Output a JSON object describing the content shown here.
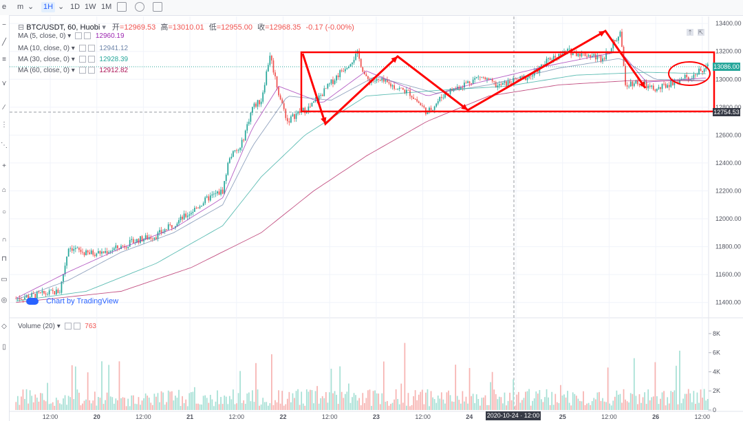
{
  "toolbar": {
    "symbol_search": "e",
    "chart_style": "m",
    "interval_active": "1H",
    "interval_1d": "1D",
    "interval_1w": "1W",
    "interval_1m": "1M"
  },
  "legend": {
    "symbol": "BTC/USDT, 60, Huobi",
    "open_label": "开",
    "open_value": "12969.53",
    "high_label": "高",
    "high_value": "13010.01",
    "low_label": "低",
    "low_value": "12955.00",
    "close_label": "收",
    "close_value": "12968.35",
    "change": "-0.17 (-0.00%)"
  },
  "indicators": [
    {
      "label": "MA (5, close, 0)",
      "value": "12960.19",
      "color": "#9c27b0"
    },
    {
      "label": "MA (10, close, 0)",
      "value": "12941.12",
      "color": "#6b83a8"
    },
    {
      "label": "MA (30, close, 0)",
      "value": "12928.39",
      "color": "#26a69a"
    },
    {
      "label": "MA (60, close, 0)",
      "value": "12912.82",
      "color": "#ad1457"
    }
  ],
  "volume_legend": {
    "label": "Volume (20)",
    "value": "763"
  },
  "price_tags": {
    "current": "13086.00",
    "crosshair": "12754.53"
  },
  "date_crosshair": "2020-10-24 · 12:00",
  "watermark": "Chart by TradingView",
  "colors": {
    "up": "#26a69a",
    "down": "#ef5350",
    "annotation": "#ff0000",
    "up_vol": "#a6e0d5",
    "down_vol": "#f7b3b1"
  },
  "chart_data": {
    "type": "candlestick",
    "title": "BTC/USDT, 60, Huobi",
    "x_ticks": [
      "12:00",
      "20",
      "12:00",
      "21",
      "12:00",
      "22",
      "12:00",
      "23",
      "12:00",
      "24",
      "12:00",
      "25",
      "12:00",
      "26",
      "12:00"
    ],
    "y_ticks": [
      13400,
      13200,
      13000,
      12800,
      12600,
      12400,
      12200,
      12000,
      11800,
      11600,
      11400
    ],
    "ylim": [
      11300,
      13450
    ],
    "volume_ticks": [
      "8K",
      "6K",
      "4K",
      "2K",
      "0"
    ],
    "volume_ylim": [
      0,
      8500
    ],
    "close_path": [
      [
        0,
        11430
      ],
      [
        10,
        11450
      ],
      [
        20,
        11470
      ],
      [
        25,
        11480
      ],
      [
        30,
        11800
      ],
      [
        40,
        11750
      ],
      [
        50,
        11760
      ],
      [
        60,
        11800
      ],
      [
        70,
        11850
      ],
      [
        80,
        11880
      ],
      [
        90,
        11960
      ],
      [
        100,
        12050
      ],
      [
        110,
        12150
      ],
      [
        118,
        12200
      ],
      [
        122,
        12450
      ],
      [
        128,
        12500
      ],
      [
        135,
        12800
      ],
      [
        140,
        12850
      ],
      [
        145,
        13180
      ],
      [
        150,
        12900
      ],
      [
        155,
        12700
      ],
      [
        160,
        12750
      ],
      [
        168,
        12800
      ],
      [
        175,
        12900
      ],
      [
        185,
        13050
      ],
      [
        195,
        13180
      ],
      [
        200,
        13000
      ],
      [
        210,
        12980
      ],
      [
        225,
        12900
      ],
      [
        235,
        12760
      ],
      [
        245,
        12900
      ],
      [
        255,
        12960
      ],
      [
        265,
        13020
      ],
      [
        275,
        12950
      ],
      [
        285,
        12990
      ],
      [
        295,
        13030
      ],
      [
        305,
        13150
      ],
      [
        315,
        13200
      ],
      [
        325,
        13180
      ],
      [
        335,
        13150
      ],
      [
        345,
        13330
      ],
      [
        348,
        12970
      ],
      [
        355,
        12980
      ],
      [
        365,
        12920
      ],
      [
        375,
        12980
      ],
      [
        385,
        13020
      ],
      [
        395,
        13086
      ]
    ],
    "ma_paths": [
      {
        "name": "MA (5, close, 0)",
        "color": "#9c27b0",
        "points": [
          [
            0,
            11430
          ],
          [
            30,
            11620
          ],
          [
            60,
            11790
          ],
          [
            90,
            11930
          ],
          [
            118,
            12150
          ],
          [
            135,
            12650
          ],
          [
            150,
            12950
          ],
          [
            175,
            12830
          ],
          [
            200,
            13060
          ],
          [
            235,
            12880
          ],
          [
            265,
            12980
          ],
          [
            305,
            13100
          ],
          [
            345,
            13200
          ],
          [
            360,
            12980
          ],
          [
            395,
            13010
          ]
        ]
      },
      {
        "name": "MA (10, close, 0)",
        "color": "#6b83a8",
        "points": [
          [
            0,
            11420
          ],
          [
            30,
            11560
          ],
          [
            60,
            11760
          ],
          [
            90,
            11900
          ],
          [
            118,
            12100
          ],
          [
            135,
            12520
          ],
          [
            155,
            12880
          ],
          [
            180,
            12850
          ],
          [
            205,
            13020
          ],
          [
            240,
            12900
          ],
          [
            270,
            12960
          ],
          [
            310,
            13080
          ],
          [
            345,
            13150
          ],
          [
            365,
            13000
          ],
          [
            395,
            12990
          ]
        ]
      },
      {
        "name": "MA (30, close, 0)",
        "color": "#26a69a",
        "points": [
          [
            0,
            11410
          ],
          [
            40,
            11480
          ],
          [
            80,
            11680
          ],
          [
            118,
            11950
          ],
          [
            140,
            12300
          ],
          [
            165,
            12600
          ],
          [
            200,
            12880
          ],
          [
            240,
            12920
          ],
          [
            280,
            12950
          ],
          [
            320,
            13030
          ],
          [
            360,
            13050
          ],
          [
            395,
            13040
          ]
        ]
      },
      {
        "name": "MA (60, close, 0)",
        "color": "#ad1457",
        "points": [
          [
            0,
            11400
          ],
          [
            60,
            11480
          ],
          [
            100,
            11650
          ],
          [
            140,
            11900
          ],
          [
            170,
            12200
          ],
          [
            200,
            12450
          ],
          [
            235,
            12700
          ],
          [
            270,
            12880
          ],
          [
            310,
            12960
          ],
          [
            350,
            12990
          ],
          [
            395,
            12990
          ]
        ]
      }
    ]
  }
}
